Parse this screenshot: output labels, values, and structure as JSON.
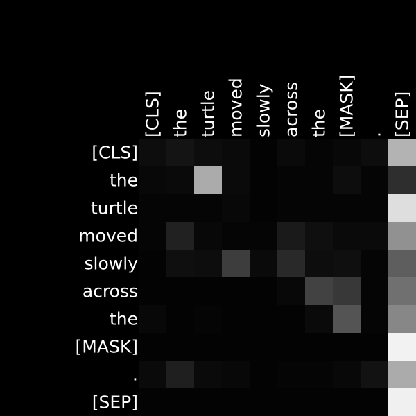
{
  "chart_data": {
    "type": "heatmap",
    "title": "",
    "xlabel": "",
    "ylabel": "",
    "x_tokens": [
      "[CLS]",
      "the",
      "turtle",
      "moved",
      "slowly",
      "across",
      "the",
      "[MASK]",
      ".",
      "[SEP]"
    ],
    "y_tokens": [
      "[CLS]",
      "the",
      "turtle",
      "moved",
      "slowly",
      "across",
      "the",
      "[MASK]",
      ".",
      "[SEP]"
    ],
    "color_scale": "grayscale",
    "value_range": [
      0,
      1
    ],
    "values": [
      [
        0.05,
        0.08,
        0.05,
        0.04,
        0.01,
        0.04,
        0.02,
        0.03,
        0.05,
        0.7
      ],
      [
        0.03,
        0.04,
        0.67,
        0.04,
        0.01,
        0.02,
        0.02,
        0.05,
        0.02,
        0.18
      ],
      [
        0.02,
        0.02,
        0.02,
        0.03,
        0.01,
        0.02,
        0.02,
        0.02,
        0.02,
        0.87
      ],
      [
        0.02,
        0.13,
        0.03,
        0.02,
        0.02,
        0.1,
        0.06,
        0.04,
        0.04,
        0.57
      ],
      [
        0.01,
        0.06,
        0.05,
        0.24,
        0.04,
        0.16,
        0.05,
        0.06,
        0.02,
        0.37
      ],
      [
        0.01,
        0.01,
        0.01,
        0.01,
        0.01,
        0.03,
        0.26,
        0.22,
        0.02,
        0.44
      ],
      [
        0.03,
        0.01,
        0.02,
        0.01,
        0.01,
        0.01,
        0.04,
        0.33,
        0.02,
        0.53
      ],
      [
        0.01,
        0.01,
        0.01,
        0.01,
        0.01,
        0.01,
        0.01,
        0.01,
        0.01,
        0.95
      ],
      [
        0.04,
        0.12,
        0.04,
        0.03,
        0.01,
        0.02,
        0.02,
        0.03,
        0.07,
        0.67
      ],
      [
        0.01,
        0.01,
        0.01,
        0.01,
        0.01,
        0.01,
        0.01,
        0.01,
        0.01,
        0.94
      ]
    ]
  }
}
